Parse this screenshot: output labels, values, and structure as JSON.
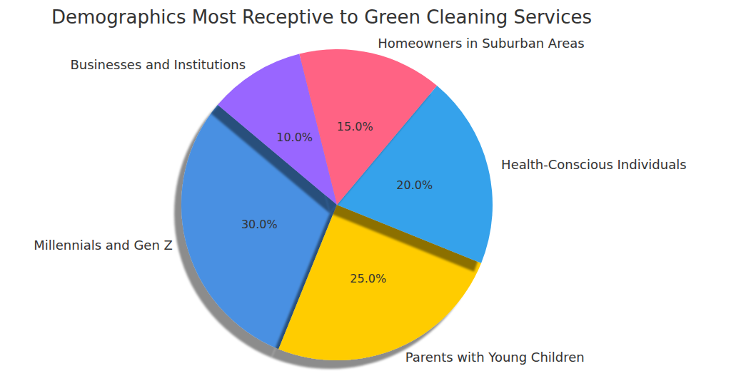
{
  "chart_data": {
    "type": "pie",
    "title": "Demographics Most Receptive to Green Cleaning Services",
    "categories": [
      "Millennials and Gen Z",
      "Parents with Young Children",
      "Health-Conscious Individuals",
      "Homeowners in Suburban Areas",
      "Businesses and Institutions"
    ],
    "values": [
      30,
      25,
      20,
      15,
      10
    ],
    "value_labels": [
      "30.0%",
      "25.0%",
      "20.0%",
      "15.0%",
      "10.0%"
    ],
    "colors": [
      "#4a90e2",
      "#ffcc00",
      "#36a2eb",
      "#ff6384",
      "#9966ff"
    ],
    "data_labels": true
  }
}
